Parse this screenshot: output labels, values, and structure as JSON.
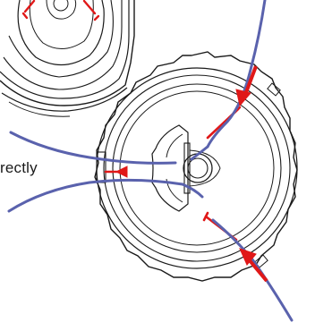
{
  "caption": {
    "text": "rectly"
  },
  "colors": {
    "outline": "#1a1a1a",
    "line": "#5a62ad",
    "arrow": "#e01818",
    "background": "#ffffff"
  },
  "icons": [
    "trimmer-head-small",
    "trimmer-head-large",
    "trimmer-line",
    "red-arrow"
  ]
}
